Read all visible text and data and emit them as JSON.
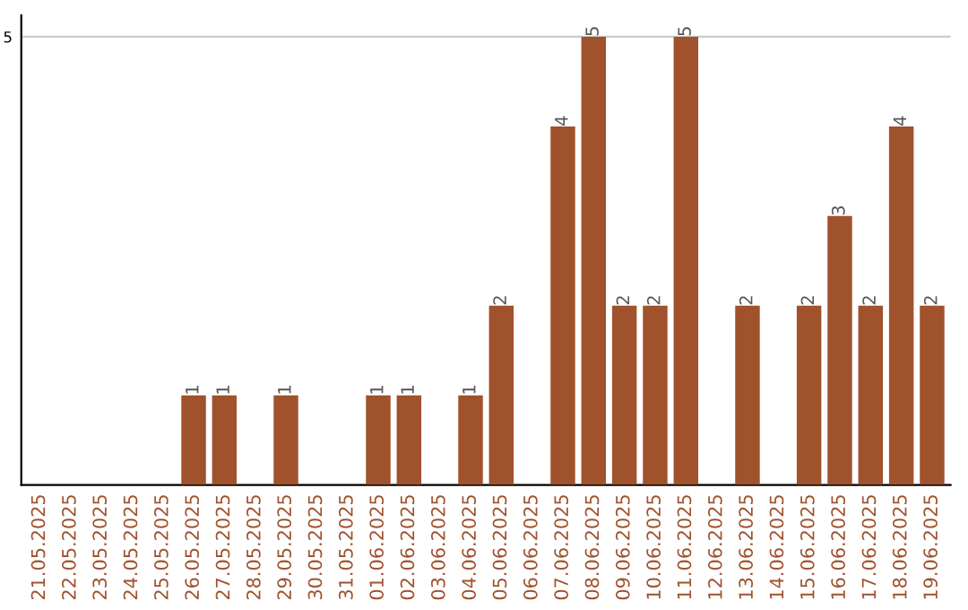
{
  "chart_data": {
    "type": "bar",
    "categories": [
      "21.05.2025",
      "22.05.2025",
      "23.05.2025",
      "24.05.2025",
      "25.05.2025",
      "26.05.2025",
      "27.05.2025",
      "28.05.2025",
      "29.05.2025",
      "30.05.2025",
      "31.05.2025",
      "01.06.2025",
      "02.06.2025",
      "03.06.2025",
      "04.06.2025",
      "05.06.2025",
      "06.06.2025",
      "07.06.2025",
      "08.06.2025",
      "09.06.2025",
      "10.06.2025",
      "11.06.2025",
      "12.06.2025",
      "13.06.2025",
      "14.06.2025",
      "15.06.2025",
      "16.06.2025",
      "17.06.2025",
      "18.06.2025",
      "19.06.2025"
    ],
    "values": [
      0,
      0,
      0,
      0,
      0,
      1,
      1,
      0,
      1,
      0,
      0,
      1,
      1,
      0,
      1,
      2,
      0,
      4,
      5,
      2,
      2,
      5,
      0,
      2,
      0,
      2,
      3,
      2,
      4,
      2
    ],
    "value_labels": [
      null,
      null,
      null,
      null,
      null,
      "1",
      "1",
      null,
      "1",
      null,
      null,
      "1",
      "1",
      null,
      "1",
      "2",
      null,
      "4",
      "5",
      "2",
      "2",
      "5",
      null,
      "2",
      null,
      "2",
      "3",
      "2",
      "4",
      "2"
    ],
    "color": "#a0522d",
    "ylim": [
      0,
      5.24
    ],
    "yticks": [
      5
    ],
    "grid": "y"
  }
}
